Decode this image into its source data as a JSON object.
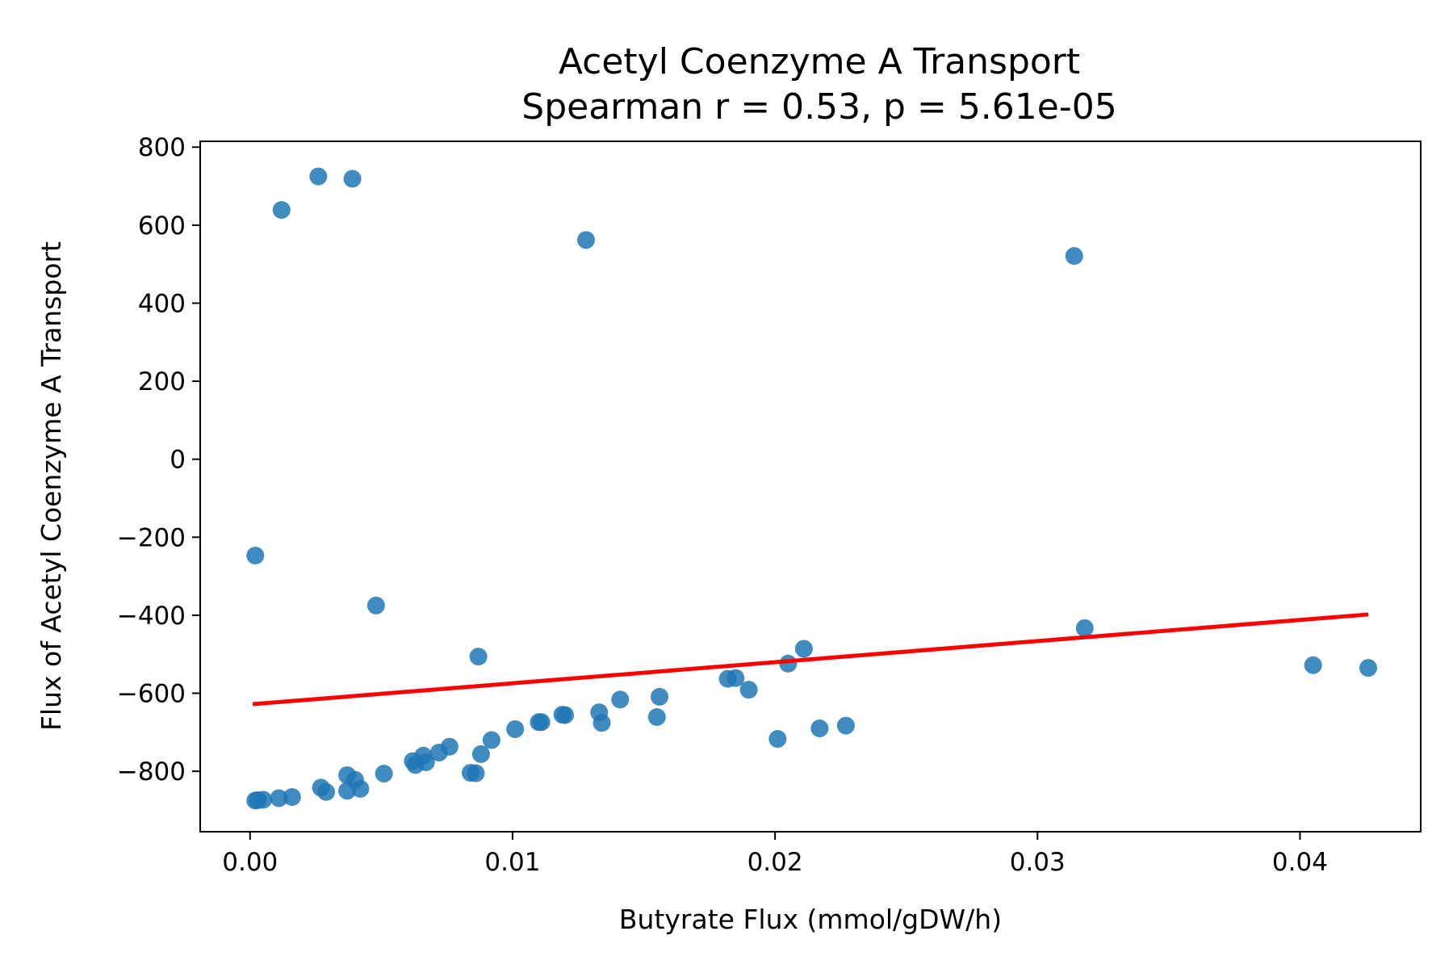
{
  "chart_data": {
    "type": "scatter",
    "title": "Acetyl Coenzyme A Transport",
    "subtitle": "Spearman r = 0.53, p = 5.61e-05",
    "xlabel": "Butyrate Flux (mmol/gDW/h)",
    "ylabel": "Flux of Acetyl Coenzyme A Transport",
    "xlim": [
      -0.0019,
      0.0446
    ],
    "ylim": [
      -955,
      815
    ],
    "x_ticks": [
      0.0,
      0.01,
      0.02,
      0.03,
      0.04
    ],
    "x_tick_labels": [
      "0.00",
      "0.01",
      "0.02",
      "0.03",
      "0.04"
    ],
    "y_ticks": [
      -800,
      -600,
      -400,
      -200,
      0,
      200,
      400,
      600,
      800
    ],
    "y_tick_labels": [
      "−800",
      "−600",
      "−400",
      "−200",
      "0",
      "200",
      "400",
      "600",
      "800"
    ],
    "grid": false,
    "legend": "none",
    "point_color": "#1f77b4",
    "fit_line_color": "#ff0000",
    "fit_line": {
      "x": [
        0.0001,
        0.0426
      ],
      "y": [
        -628,
        -398
      ]
    },
    "points": [
      {
        "x": 0.0012,
        "y": 639
      },
      {
        "x": 0.0026,
        "y": 725
      },
      {
        "x": 0.0039,
        "y": 719
      },
      {
        "x": 0.0128,
        "y": 562
      },
      {
        "x": 0.0314,
        "y": 521
      },
      {
        "x": 0.0002,
        "y": -247
      },
      {
        "x": 0.0048,
        "y": -375
      },
      {
        "x": 0.0087,
        "y": -506
      },
      {
        "x": 0.0318,
        "y": -433
      },
      {
        "x": 0.0211,
        "y": -486
      },
      {
        "x": 0.0205,
        "y": -524
      },
      {
        "x": 0.0405,
        "y": -528
      },
      {
        "x": 0.0426,
        "y": -535
      },
      {
        "x": 0.0182,
        "y": -563
      },
      {
        "x": 0.0185,
        "y": -561
      },
      {
        "x": 0.019,
        "y": -591
      },
      {
        "x": 0.0156,
        "y": -609
      },
      {
        "x": 0.0141,
        "y": -616
      },
      {
        "x": 0.0133,
        "y": -649
      },
      {
        "x": 0.0134,
        "y": -676
      },
      {
        "x": 0.0155,
        "y": -661
      },
      {
        "x": 0.012,
        "y": -656
      },
      {
        "x": 0.0119,
        "y": -655
      },
      {
        "x": 0.0111,
        "y": -674
      },
      {
        "x": 0.011,
        "y": -674
      },
      {
        "x": 0.0101,
        "y": -692
      },
      {
        "x": 0.0201,
        "y": -717
      },
      {
        "x": 0.0217,
        "y": -690
      },
      {
        "x": 0.0227,
        "y": -683
      },
      {
        "x": 0.0092,
        "y": -720
      },
      {
        "x": 0.0088,
        "y": -756
      },
      {
        "x": 0.0076,
        "y": -737
      },
      {
        "x": 0.0072,
        "y": -752
      },
      {
        "x": 0.0066,
        "y": -760
      },
      {
        "x": 0.0067,
        "y": -777
      },
      {
        "x": 0.0062,
        "y": -774
      },
      {
        "x": 0.0063,
        "y": -784
      },
      {
        "x": 0.0084,
        "y": -804
      },
      {
        "x": 0.0086,
        "y": -805
      },
      {
        "x": 0.0051,
        "y": -806
      },
      {
        "x": 0.0037,
        "y": -810
      },
      {
        "x": 0.004,
        "y": -822
      },
      {
        "x": 0.0027,
        "y": -842
      },
      {
        "x": 0.0029,
        "y": -853
      },
      {
        "x": 0.0037,
        "y": -850
      },
      {
        "x": 0.0042,
        "y": -845
      },
      {
        "x": 0.0016,
        "y": -866
      },
      {
        "x": 0.0011,
        "y": -869
      },
      {
        "x": 0.0005,
        "y": -873
      },
      {
        "x": 0.0003,
        "y": -874
      },
      {
        "x": 0.0002,
        "y": -875
      }
    ]
  }
}
